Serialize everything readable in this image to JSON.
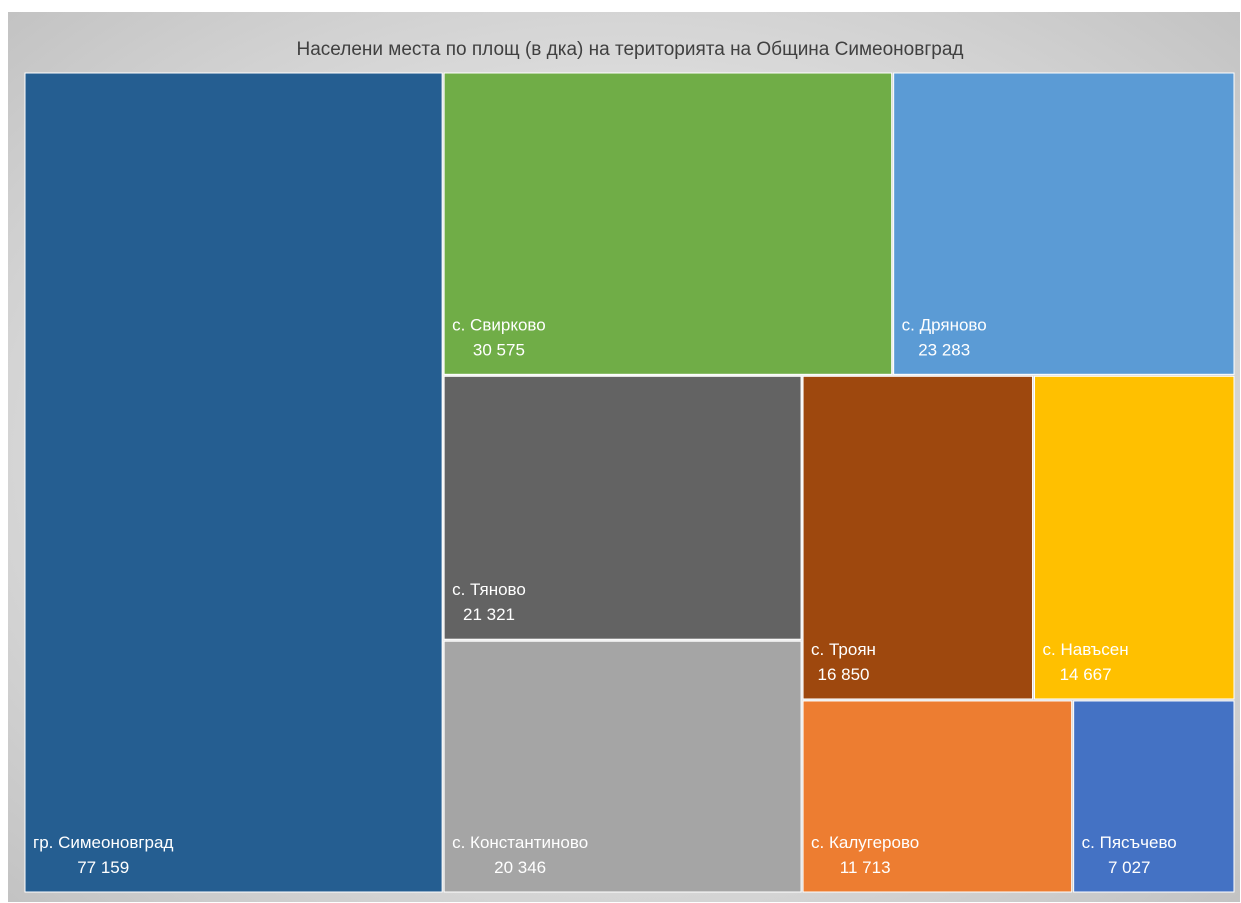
{
  "chart_data": {
    "type": "treemap",
    "title": "Населени места по площ (в дка) на територията на Община Симеоновград",
    "categories": [
      "гр. Симеоновград",
      "с. Свирково",
      "с. Дряново",
      "с. Тяново",
      "с. Константиново",
      "с. Троян",
      "с. Навъсен",
      "с. Калугерово",
      "с. Пясъчево"
    ],
    "values": [
      77159,
      30575,
      23283,
      21321,
      20346,
      16850,
      14667,
      11713,
      7027
    ],
    "value_labels": [
      "77 159",
      "30 575",
      "23 283",
      "21 321",
      "20 346",
      "16 850",
      "14 667",
      "11 713",
      "7 027"
    ],
    "colors": [
      "#255e91",
      "#70ad47",
      "#5b9bd5",
      "#636363",
      "#a5a5a5",
      "#9e480e",
      "#ffc000",
      "#ed7d31",
      "#4472c4"
    ]
  }
}
